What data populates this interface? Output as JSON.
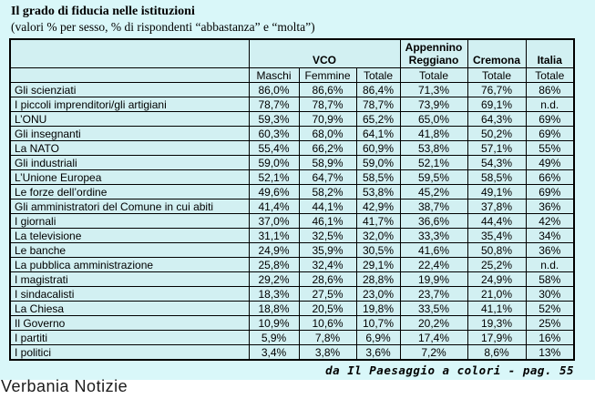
{
  "title": "Il grado di fiducia nelle istituzioni",
  "subtitle": "(valori % per sesso, % di rispondenti “abbastanza” e “molta”)",
  "caption": "da Il Paesaggio a colori - pag. 55",
  "footer": "Verbania Notizie",
  "colors": {
    "background": "#d9f7f9",
    "cell": "#d2f0f2",
    "border": "#000000"
  },
  "table": {
    "corner_label": "",
    "groups": [
      {
        "label": "VCO",
        "span": 3
      },
      {
        "label": "Appennino Reggiano",
        "span": 1
      },
      {
        "label": "Cremona",
        "span": 1
      },
      {
        "label": "Italia",
        "span": 1
      }
    ],
    "sub_headers": [
      "Maschi",
      "Femmine",
      "Totale",
      "Totale",
      "Totale",
      "Totale"
    ],
    "rows": [
      {
        "label": "Gli scienziati",
        "values": [
          "86,0%",
          "86,6%",
          "86,4%",
          "71,3%",
          "76,7%",
          "86%"
        ]
      },
      {
        "label": "I piccoli imprenditori/gli artigiani",
        "values": [
          "78,7%",
          "78,7%",
          "78,7%",
          "73,9%",
          "69,1%",
          "n.d."
        ]
      },
      {
        "label": "L’ONU",
        "values": [
          "59,3%",
          "70,9%",
          "65,2%",
          "65,0%",
          "64,3%",
          "69%"
        ]
      },
      {
        "label": "Gli insegnanti",
        "values": [
          "60,3%",
          "68,0%",
          "64,1%",
          "41,8%",
          "50,2%",
          "69%"
        ]
      },
      {
        "label": "La NATO",
        "values": [
          "55,4%",
          "66,2%",
          "60,9%",
          "53,8%",
          "57,1%",
          "55%"
        ]
      },
      {
        "label": "Gli industriali",
        "values": [
          "59,0%",
          "58,9%",
          "59,0%",
          "52,1%",
          "54,3%",
          "49%"
        ]
      },
      {
        "label": "L’Unione Europea",
        "values": [
          "52,1%",
          "64,7%",
          "58,5%",
          "59,5%",
          "58,5%",
          "66%"
        ]
      },
      {
        "label": "Le forze dell’ordine",
        "values": [
          "49,6%",
          "58,2%",
          "53,8%",
          "45,2%",
          "49,1%",
          "69%"
        ]
      },
      {
        "label": "Gli amministratori del Comune in cui abiti",
        "values": [
          "41,4%",
          "44,1%",
          "42,9%",
          "38,7%",
          "37,8%",
          "36%"
        ]
      },
      {
        "label": "I giornali",
        "values": [
          "37,0%",
          "46,1%",
          "41,7%",
          "36,6%",
          "44,4%",
          "42%"
        ]
      },
      {
        "label": "La televisione",
        "values": [
          "31,1%",
          "32,5%",
          "32,0%",
          "33,3%",
          "35,4%",
          "34%"
        ]
      },
      {
        "label": "Le banche",
        "values": [
          "24,9%",
          "35,9%",
          "30,5%",
          "41,6%",
          "50,8%",
          "36%"
        ]
      },
      {
        "label": "La pubblica amministrazione",
        "values": [
          "25,8%",
          "32,4%",
          "29,1%",
          "22,4%",
          "25,2%",
          "n.d."
        ]
      },
      {
        "label": "I magistrati",
        "values": [
          "29,2%",
          "28,6%",
          "28,8%",
          "19,9%",
          "24,9%",
          "58%"
        ]
      },
      {
        "label": "I sindacalisti",
        "values": [
          "18,3%",
          "27,5%",
          "23,0%",
          "23,7%",
          "21,0%",
          "30%"
        ]
      },
      {
        "label": "La Chiesa",
        "values": [
          "18,8%",
          "20,5%",
          "19,8%",
          "33,5%",
          "41,1%",
          "52%"
        ]
      },
      {
        "label": "Il Governo",
        "values": [
          "10,9%",
          "10,6%",
          "10,7%",
          "20,2%",
          "19,3%",
          "25%"
        ]
      },
      {
        "label": "I partiti",
        "values": [
          "5,9%",
          "7,8%",
          "6,9%",
          "17,4%",
          "17,9%",
          "16%"
        ]
      },
      {
        "label": "I politici",
        "values": [
          "3,4%",
          "3,8%",
          "3,6%",
          "7,2%",
          "8,6%",
          "13%"
        ]
      }
    ]
  }
}
